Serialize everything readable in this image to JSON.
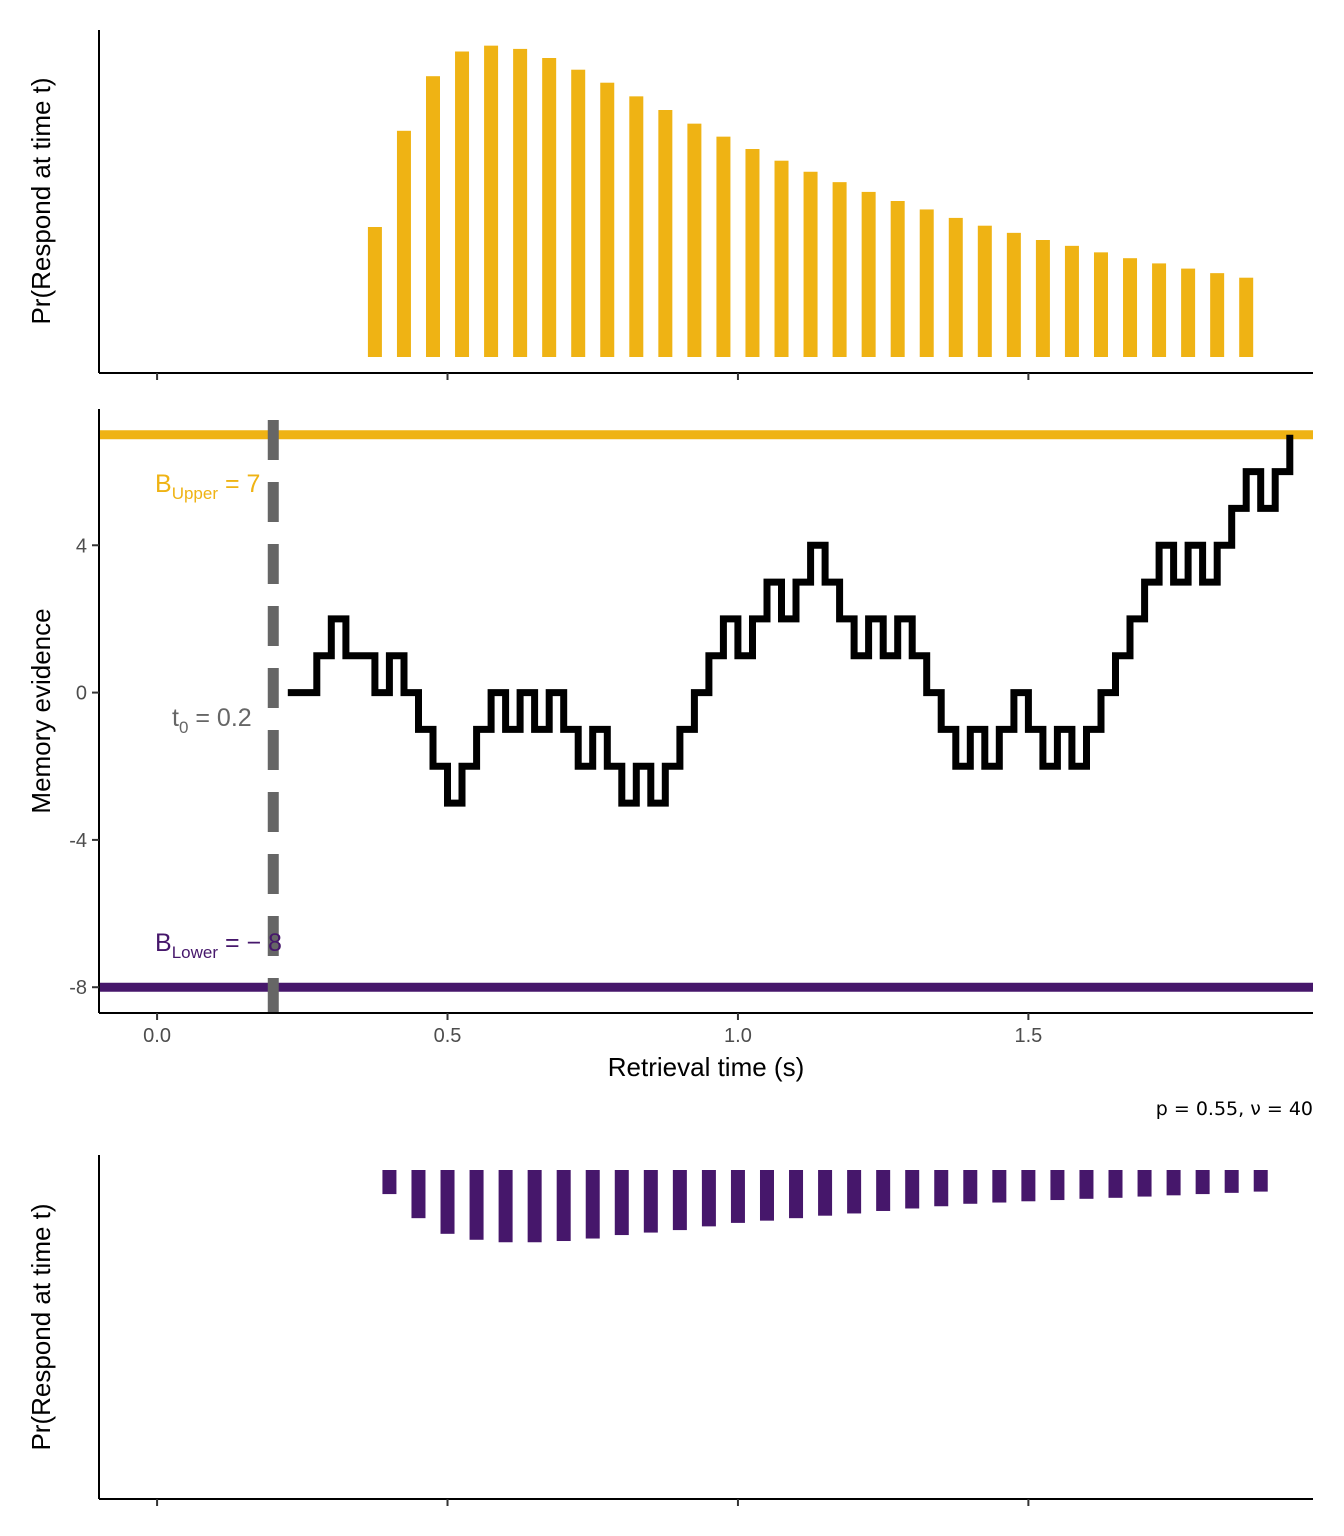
{
  "colors": {
    "upper": "#EFB314",
    "lower": "#46176B",
    "path": "#000000",
    "t0": "#666666",
    "axis": "#000000"
  },
  "caption": "p = 0.55, ν = 40",
  "chart_data": [
    {
      "type": "bar",
      "panel": "upper",
      "ylabel": "Pr(Respond at time t)",
      "xlim": [
        -0.1,
        1.99
      ],
      "xticks": [
        0.0,
        0.5,
        1.0,
        1.5
      ],
      "x": [
        0.375,
        0.425,
        0.475,
        0.525,
        0.575,
        0.625,
        0.675,
        0.725,
        0.775,
        0.825,
        0.875,
        0.925,
        0.975,
        1.025,
        1.075,
        1.125,
        1.175,
        1.225,
        1.275,
        1.325,
        1.375,
        1.425,
        1.475,
        1.525,
        1.575,
        1.625,
        1.675,
        1.725,
        1.775,
        1.825,
        1.875
      ],
      "values": [
        0.2,
        0.348,
        0.432,
        0.47,
        0.479,
        0.474,
        0.46,
        0.442,
        0.422,
        0.401,
        0.38,
        0.359,
        0.339,
        0.32,
        0.302,
        0.285,
        0.269,
        0.254,
        0.24,
        0.227,
        0.214,
        0.202,
        0.191,
        0.18,
        0.171,
        0.161,
        0.152,
        0.144,
        0.136,
        0.129,
        0.122
      ],
      "ylim": [
        0,
        0.48
      ]
    },
    {
      "type": "line",
      "panel": "middle",
      "xlabel": "Retrieval time (s)",
      "ylabel": "Memory evidence",
      "xlim": [
        -0.1,
        1.99
      ],
      "ylim": [
        -8.7,
        7.7
      ],
      "xticks": [
        0.0,
        0.5,
        1.0,
        1.5
      ],
      "xtick_labels": [
        "0.0",
        "0.5",
        "1.0",
        "1.5"
      ],
      "yticks": [
        -8,
        -4,
        0,
        4
      ],
      "ytick_labels": [
        "-8",
        "-4",
        "0",
        "4"
      ],
      "t0": 0.2,
      "t0_label": {
        "base": "t",
        "sub": "0",
        "rest": " = 0.2"
      },
      "upper_bound": 7,
      "upper_label": {
        "base": "B",
        "sub": "Upper",
        "rest": " = 7"
      },
      "lower_bound": -8,
      "lower_label": {
        "base": "B",
        "sub": "Lower",
        "rest": " = − 8"
      },
      "step": 0.025,
      "path_start_x": 0.225,
      "path_y": [
        0,
        0,
        1,
        2,
        1,
        1,
        0,
        1,
        0,
        -1,
        -2,
        -3,
        -2,
        -1,
        0,
        -1,
        0,
        -1,
        0,
        -1,
        -2,
        -1,
        -2,
        -3,
        -2,
        -3,
        -2,
        -1,
        0,
        1,
        2,
        1,
        2,
        3,
        2,
        3,
        4,
        3,
        2,
        1,
        2,
        1,
        2,
        1,
        0,
        -1,
        -2,
        -1,
        -2,
        -1,
        0,
        -1,
        -2,
        -1,
        -2,
        -1,
        0,
        1,
        2,
        3,
        4,
        3,
        4,
        3,
        4,
        5,
        6,
        5,
        6,
        7
      ]
    },
    {
      "type": "bar",
      "panel": "lower",
      "ylabel": "Pr(Respond at time t)",
      "orientation": "downward",
      "xlim": [
        -0.1,
        1.99
      ],
      "xticks": [
        0.0,
        0.5,
        1.0,
        1.5
      ],
      "x": [
        0.4,
        0.45,
        0.5,
        0.55,
        0.6,
        0.65,
        0.7,
        0.75,
        0.8,
        0.85,
        0.9,
        0.95,
        1.0,
        1.05,
        1.1,
        1.15,
        1.2,
        1.25,
        1.3,
        1.35,
        1.4,
        1.45,
        1.5,
        1.55,
        1.6,
        1.65,
        1.7,
        1.75,
        1.8,
        1.85,
        1.9
      ],
      "values": [
        0.0097,
        0.0194,
        0.0257,
        0.0281,
        0.0291,
        0.0291,
        0.0286,
        0.0276,
        0.0262,
        0.0252,
        0.0242,
        0.0227,
        0.0213,
        0.0204,
        0.0194,
        0.0184,
        0.0175,
        0.0165,
        0.0155,
        0.0146,
        0.0136,
        0.0131,
        0.0126,
        0.0121,
        0.0116,
        0.0112,
        0.0107,
        0.0102,
        0.0097,
        0.0092,
        0.0087
      ],
      "ylim": [
        0,
        0.1325
      ]
    }
  ]
}
